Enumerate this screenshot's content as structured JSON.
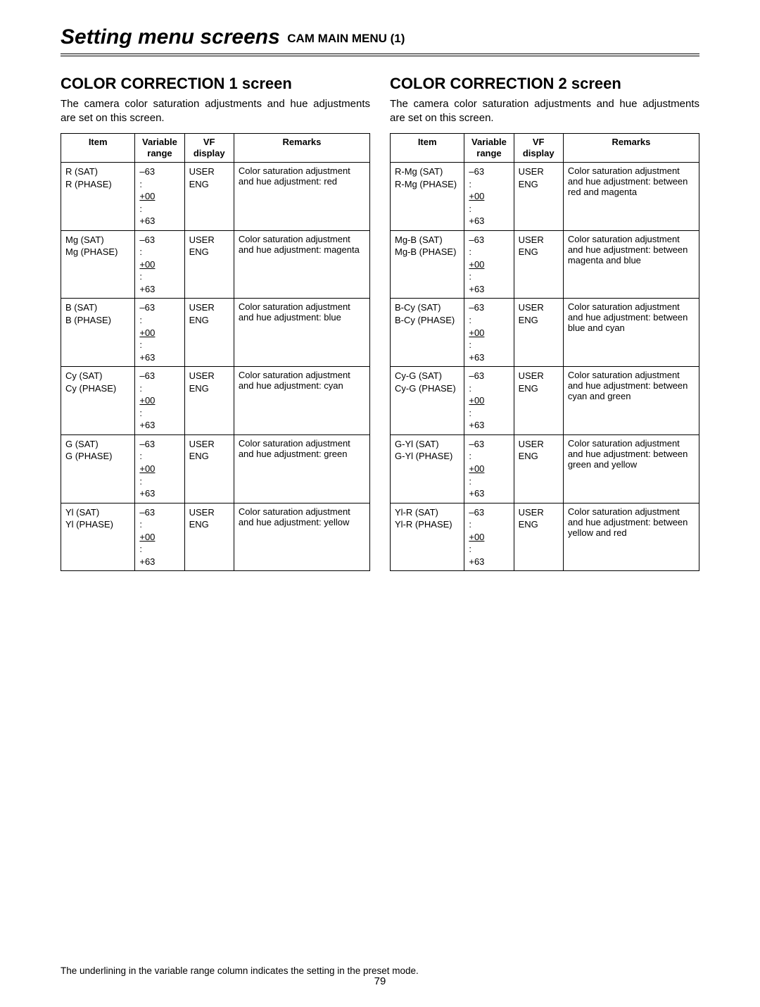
{
  "header": {
    "main": "Setting menu screens",
    "sub": "CAM MAIN MENU (1)"
  },
  "common": {
    "range_min": "–63",
    "range_colon": ":",
    "range_preset": "+00",
    "range_max": "+63",
    "vf_user": "USER",
    "vf_eng": "ENG"
  },
  "table_headers": {
    "item": "Item",
    "range": "Variable range",
    "vf": "VF display",
    "remarks": "Remarks"
  },
  "left": {
    "heading": "COLOR CORRECTION 1 screen",
    "desc": "The camera color saturation adjustments and hue adjustments are set on this screen.",
    "rows": [
      {
        "item1": "R (SAT)",
        "item2": "R (PHASE)",
        "remarks": "Color saturation adjustment and hue adjustment: red"
      },
      {
        "item1": "Mg (SAT)",
        "item2": "Mg (PHASE)",
        "remarks": "Color saturation adjustment and hue adjustment: magenta"
      },
      {
        "item1": "B (SAT)",
        "item2": "B (PHASE)",
        "remarks": "Color saturation adjustment and hue adjustment: blue"
      },
      {
        "item1": "Cy (SAT)",
        "item2": "Cy (PHASE)",
        "remarks": "Color saturation adjustment and hue adjustment: cyan"
      },
      {
        "item1": "G (SAT)",
        "item2": "G (PHASE)",
        "remarks": "Color saturation adjustment and hue adjustment: green"
      },
      {
        "item1": "Yl (SAT)",
        "item2": "Yl (PHASE)",
        "remarks": "Color saturation adjustment and hue adjustment: yellow"
      }
    ]
  },
  "right": {
    "heading": "COLOR CORRECTION 2 screen",
    "desc": "The camera color saturation adjustments and hue adjustments are set on this screen.",
    "rows": [
      {
        "item1": "R-Mg (SAT)",
        "item2": "R-Mg (PHASE)",
        "remarks": "Color saturation adjustment and hue adjustment: between red and magenta"
      },
      {
        "item1": "Mg-B (SAT)",
        "item2": "Mg-B (PHASE)",
        "remarks": "Color saturation adjustment and hue adjustment: between magenta and blue"
      },
      {
        "item1": "B-Cy (SAT)",
        "item2": "B-Cy (PHASE)",
        "remarks": "Color saturation adjustment and hue adjustment: between blue and cyan"
      },
      {
        "item1": "Cy-G (SAT)",
        "item2": "Cy-G (PHASE)",
        "remarks": "Color saturation adjustment and hue adjustment: between cyan and green"
      },
      {
        "item1": "G-Yl (SAT)",
        "item2": "G-Yl (PHASE)",
        "remarks": "Color saturation adjustment and hue adjustment: between green and yellow"
      },
      {
        "item1": "Yl-R (SAT)",
        "item2": "Yl-R (PHASE)",
        "remarks": "Color saturation adjustment and hue adjustment: between yellow and red"
      }
    ]
  },
  "footnote": "The underlining in the variable range column indicates the setting in the preset mode.",
  "page_number": "79"
}
